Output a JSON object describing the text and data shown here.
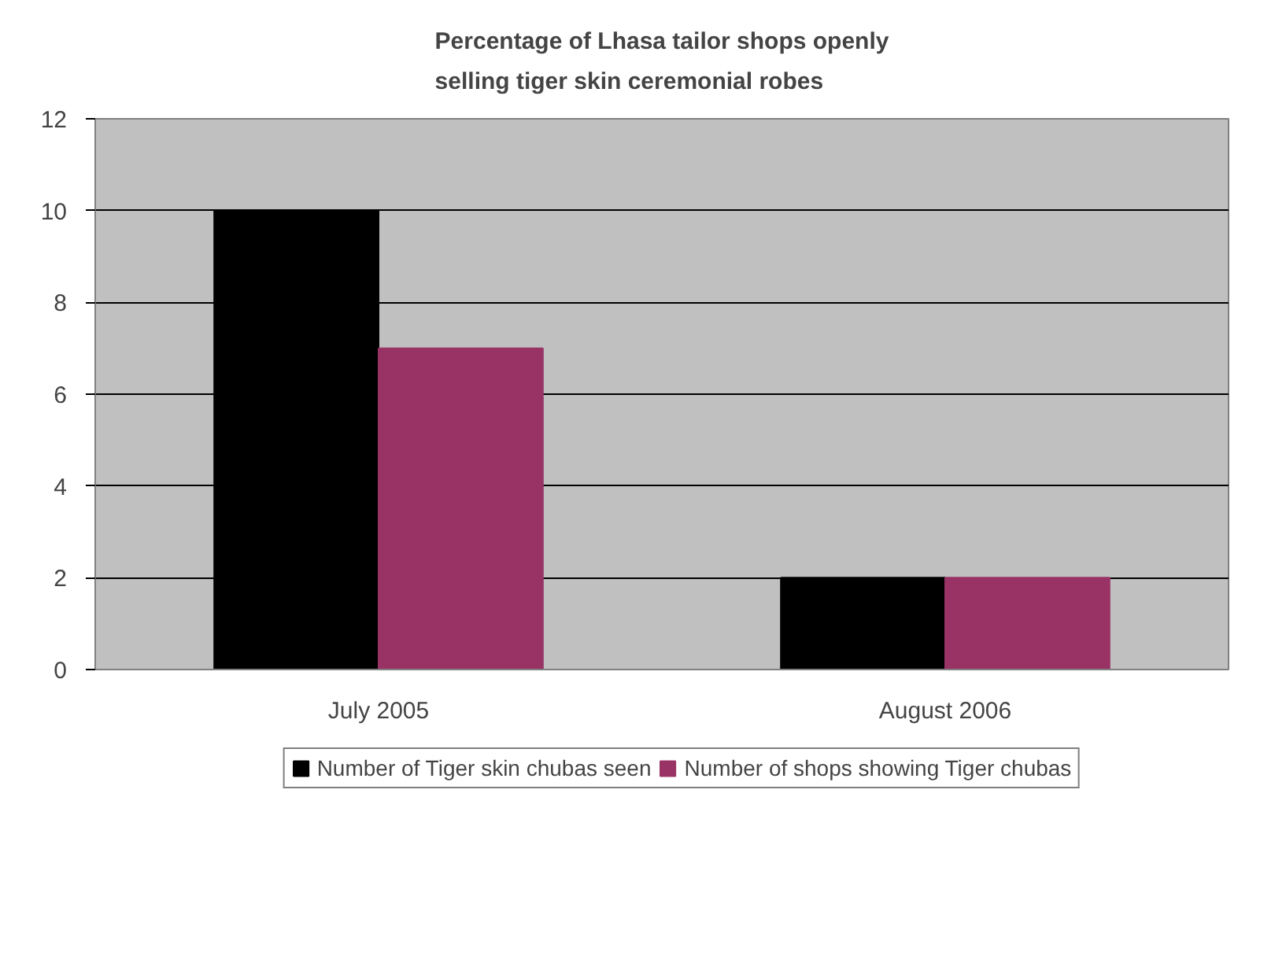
{
  "chart_data": {
    "type": "bar",
    "title": "Percentage of Lhasa tailor shops openly selling tiger skin ceremonial robes",
    "categories": [
      "July 2005",
      "August 2006"
    ],
    "series": [
      {
        "name": "Number of Tiger skin chubas seen",
        "color": "#000000",
        "values": [
          10,
          2
        ]
      },
      {
        "name": "Number of shops showing Tiger chubas",
        "color": "#993366",
        "values": [
          7,
          2
        ]
      }
    ],
    "ylim": [
      0,
      12
    ],
    "yticks": [
      0,
      2,
      4,
      6,
      8,
      10,
      12
    ],
    "grid": "y",
    "legend": "bottom"
  }
}
